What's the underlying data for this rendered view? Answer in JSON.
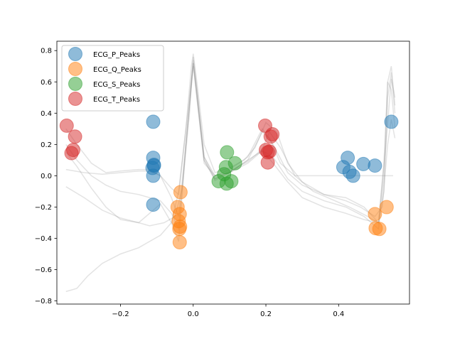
{
  "chart_data": {
    "type": "scatter",
    "title": "",
    "xlabel": "",
    "ylabel": "",
    "xlim": [
      -0.375,
      0.595
    ],
    "ylim": [
      -0.82,
      0.86
    ],
    "x_ticks": [
      -0.2,
      0.0,
      0.2,
      0.4
    ],
    "x_tick_labels": [
      "−0.2",
      "0.0",
      "0.2",
      "0.4"
    ],
    "y_ticks": [
      -0.8,
      -0.6,
      -0.4,
      -0.2,
      0.0,
      0.2,
      0.4,
      0.6,
      0.8
    ],
    "y_tick_labels": [
      "−0.8",
      "−0.6",
      "−0.4",
      "−0.2",
      "0.0",
      "0.2",
      "0.4",
      "0.6",
      "0.8"
    ],
    "grid": false,
    "legend_position": "top-left",
    "background_traces": [
      [
        [
          -0.35,
          -0.74
        ],
        [
          -0.32,
          -0.72
        ],
        [
          -0.29,
          -0.64
        ],
        [
          -0.25,
          -0.56
        ],
        [
          -0.2,
          -0.5
        ],
        [
          -0.15,
          -0.46
        ],
        [
          -0.12,
          -0.42
        ],
        [
          -0.09,
          -0.38
        ],
        [
          -0.06,
          -0.3
        ],
        [
          -0.04,
          -0.1
        ],
        [
          -0.02,
          0.3
        ],
        [
          -0.005,
          0.7
        ],
        [
          0.0,
          0.78
        ],
        [
          0.01,
          0.6
        ],
        [
          0.03,
          0.2
        ],
        [
          0.06,
          0.02
        ],
        [
          0.1,
          0.05
        ],
        [
          0.14,
          0.1
        ],
        [
          0.17,
          0.18
        ],
        [
          0.2,
          0.34
        ],
        [
          0.23,
          0.28
        ],
        [
          0.26,
          0.08
        ],
        [
          0.3,
          -0.04
        ],
        [
          0.36,
          -0.12
        ],
        [
          0.42,
          -0.16
        ],
        [
          0.46,
          -0.2
        ],
        [
          0.5,
          -0.26
        ],
        [
          0.52,
          -0.2
        ],
        [
          0.535,
          0.2
        ],
        [
          0.545,
          0.36
        ],
        [
          0.555,
          0.24
        ]
      ],
      [
        [
          -0.35,
          -0.07
        ],
        [
          -0.3,
          -0.14
        ],
        [
          -0.25,
          -0.22
        ],
        [
          -0.2,
          -0.27
        ],
        [
          -0.15,
          -0.3
        ],
        [
          -0.12,
          -0.32
        ],
        [
          -0.08,
          -0.3
        ],
        [
          -0.05,
          -0.26
        ],
        [
          -0.03,
          -0.08
        ],
        [
          -0.01,
          0.4
        ],
        [
          0.0,
          0.76
        ],
        [
          0.01,
          0.55
        ],
        [
          0.03,
          0.12
        ],
        [
          0.06,
          -0.02
        ],
        [
          0.1,
          0.03
        ],
        [
          0.15,
          0.09
        ],
        [
          0.19,
          0.17
        ],
        [
          0.21,
          0.28
        ],
        [
          0.24,
          0.18
        ],
        [
          0.28,
          0.0
        ],
        [
          0.33,
          -0.1
        ],
        [
          0.38,
          -0.15
        ],
        [
          0.43,
          -0.2
        ],
        [
          0.48,
          -0.26
        ],
        [
          0.51,
          -0.3
        ],
        [
          0.525,
          0.1
        ],
        [
          0.535,
          0.6
        ],
        [
          0.545,
          0.55
        ],
        [
          0.555,
          0.3
        ]
      ],
      [
        [
          -0.35,
          0.04
        ],
        [
          -0.3,
          0.02
        ],
        [
          -0.25,
          0.01
        ],
        [
          -0.2,
          0.02
        ],
        [
          -0.15,
          0.03
        ],
        [
          -0.12,
          0.03
        ],
        [
          -0.09,
          0.0
        ],
        [
          -0.06,
          -0.08
        ],
        [
          -0.04,
          -0.12
        ],
        [
          -0.02,
          0.3
        ],
        [
          0.0,
          0.72
        ],
        [
          0.01,
          0.55
        ],
        [
          0.03,
          0.12
        ],
        [
          0.06,
          0.0
        ],
        [
          0.1,
          0.02
        ],
        [
          0.15,
          0.1
        ],
        [
          0.19,
          0.28
        ],
        [
          0.21,
          0.24
        ],
        [
          0.24,
          0.08
        ],
        [
          0.28,
          0.0
        ],
        [
          0.33,
          0.0
        ],
        [
          0.4,
          0.0
        ],
        [
          0.45,
          0.0
        ],
        [
          0.5,
          0.0
        ],
        [
          0.55,
          0.0
        ]
      ],
      [
        [
          -0.35,
          0.3
        ],
        [
          -0.32,
          0.2
        ],
        [
          -0.28,
          0.08
        ],
        [
          -0.24,
          0.02
        ],
        [
          -0.2,
          0.03
        ],
        [
          -0.15,
          0.04
        ],
        [
          -0.12,
          0.04
        ],
        [
          -0.09,
          0.0
        ],
        [
          -0.06,
          -0.14
        ],
        [
          -0.04,
          -0.26
        ],
        [
          -0.02,
          0.2
        ],
        [
          0.0,
          0.7
        ],
        [
          0.01,
          0.5
        ],
        [
          0.03,
          0.08
        ],
        [
          0.06,
          0.0
        ],
        [
          0.1,
          0.04
        ],
        [
          0.15,
          0.12
        ],
        [
          0.19,
          0.3
        ],
        [
          0.22,
          0.2
        ],
        [
          0.26,
          0.02
        ],
        [
          0.3,
          -0.06
        ],
        [
          0.36,
          -0.12
        ],
        [
          0.42,
          -0.14
        ],
        [
          0.47,
          -0.2
        ],
        [
          0.51,
          -0.3
        ],
        [
          0.525,
          -0.1
        ],
        [
          0.535,
          0.5
        ],
        [
          0.545,
          0.66
        ],
        [
          0.555,
          0.4
        ]
      ],
      [
        [
          -0.35,
          0.2
        ],
        [
          -0.32,
          0.1
        ],
        [
          -0.28,
          0.0
        ],
        [
          -0.24,
          -0.06
        ],
        [
          -0.2,
          -0.1
        ],
        [
          -0.15,
          -0.12
        ],
        [
          -0.12,
          -0.14
        ],
        [
          -0.09,
          -0.16
        ],
        [
          -0.06,
          -0.24
        ],
        [
          -0.04,
          -0.34
        ],
        [
          -0.02,
          0.2
        ],
        [
          0.0,
          0.74
        ],
        [
          0.01,
          0.5
        ],
        [
          0.03,
          0.1
        ],
        [
          0.06,
          -0.02
        ],
        [
          0.1,
          0.02
        ],
        [
          0.15,
          0.1
        ],
        [
          0.19,
          0.16
        ],
        [
          0.22,
          0.12
        ],
        [
          0.26,
          -0.02
        ],
        [
          0.3,
          -0.1
        ],
        [
          0.36,
          -0.16
        ],
        [
          0.42,
          -0.2
        ],
        [
          0.47,
          -0.26
        ],
        [
          0.51,
          -0.34
        ],
        [
          0.525,
          0.0
        ],
        [
          0.535,
          0.6
        ],
        [
          0.545,
          0.7
        ],
        [
          0.555,
          0.45
        ]
      ],
      [
        [
          -0.35,
          0.15
        ],
        [
          -0.32,
          0.06
        ],
        [
          -0.28,
          -0.08
        ],
        [
          -0.24,
          -0.2
        ],
        [
          -0.2,
          -0.28
        ],
        [
          -0.15,
          -0.3
        ],
        [
          -0.12,
          -0.24
        ],
        [
          -0.09,
          -0.18
        ],
        [
          -0.06,
          -0.3
        ],
        [
          -0.04,
          -0.42
        ],
        [
          -0.02,
          0.2
        ],
        [
          0.0,
          0.72
        ],
        [
          0.01,
          0.52
        ],
        [
          0.03,
          0.1
        ],
        [
          0.06,
          -0.03
        ],
        [
          0.1,
          0.02
        ],
        [
          0.15,
          0.08
        ],
        [
          0.19,
          0.16
        ],
        [
          0.22,
          0.08
        ],
        [
          0.26,
          -0.04
        ],
        [
          0.3,
          -0.14
        ],
        [
          0.36,
          -0.2
        ],
        [
          0.42,
          -0.24
        ],
        [
          0.47,
          -0.28
        ],
        [
          0.51,
          -0.3
        ],
        [
          0.53,
          0.2
        ],
        [
          0.545,
          0.62
        ],
        [
          0.555,
          0.5
        ]
      ]
    ],
    "series": [
      {
        "name": "ECG_P_Peaks",
        "color": "#1f77b4",
        "x": [
          -0.11,
          -0.11,
          -0.108,
          -0.112,
          -0.108,
          -0.11,
          -0.11,
          0.413,
          0.425,
          0.43,
          0.44,
          0.468,
          0.5,
          0.545
        ],
        "y": [
          0.345,
          0.115,
          0.07,
          0.05,
          0.065,
          0.0,
          -0.185,
          0.055,
          0.115,
          0.025,
          0.0,
          0.075,
          0.065,
          0.345
        ]
      },
      {
        "name": "ECG_Q_Peaks",
        "color": "#ff7f0e",
        "x": [
          -0.035,
          -0.037,
          -0.043,
          -0.04,
          -0.038,
          -0.036,
          -0.037,
          0.5,
          0.502,
          0.512,
          0.532
        ],
        "y": [
          -0.105,
          -0.245,
          -0.2,
          -0.29,
          -0.34,
          -0.325,
          -0.425,
          -0.245,
          -0.335,
          -0.34,
          -0.2
        ]
      },
      {
        "name": "ECG_S_Peaks",
        "color": "#2ca02c",
        "x": [
          0.07,
          0.085,
          0.09,
          0.093,
          0.092,
          0.105,
          0.115
        ],
        "y": [
          -0.035,
          0.01,
          0.055,
          0.15,
          -0.05,
          -0.035,
          0.08
        ]
      },
      {
        "name": "ECG_T_Peaks",
        "color": "#d62728",
        "x": [
          -0.348,
          -0.325,
          -0.33,
          -0.335,
          0.198,
          0.2,
          0.21,
          0.205,
          0.205,
          0.213,
          0.218
        ],
        "y": [
          0.32,
          0.25,
          0.165,
          0.145,
          0.32,
          0.165,
          0.155,
          0.15,
          0.085,
          0.25,
          0.265
        ]
      }
    ]
  }
}
